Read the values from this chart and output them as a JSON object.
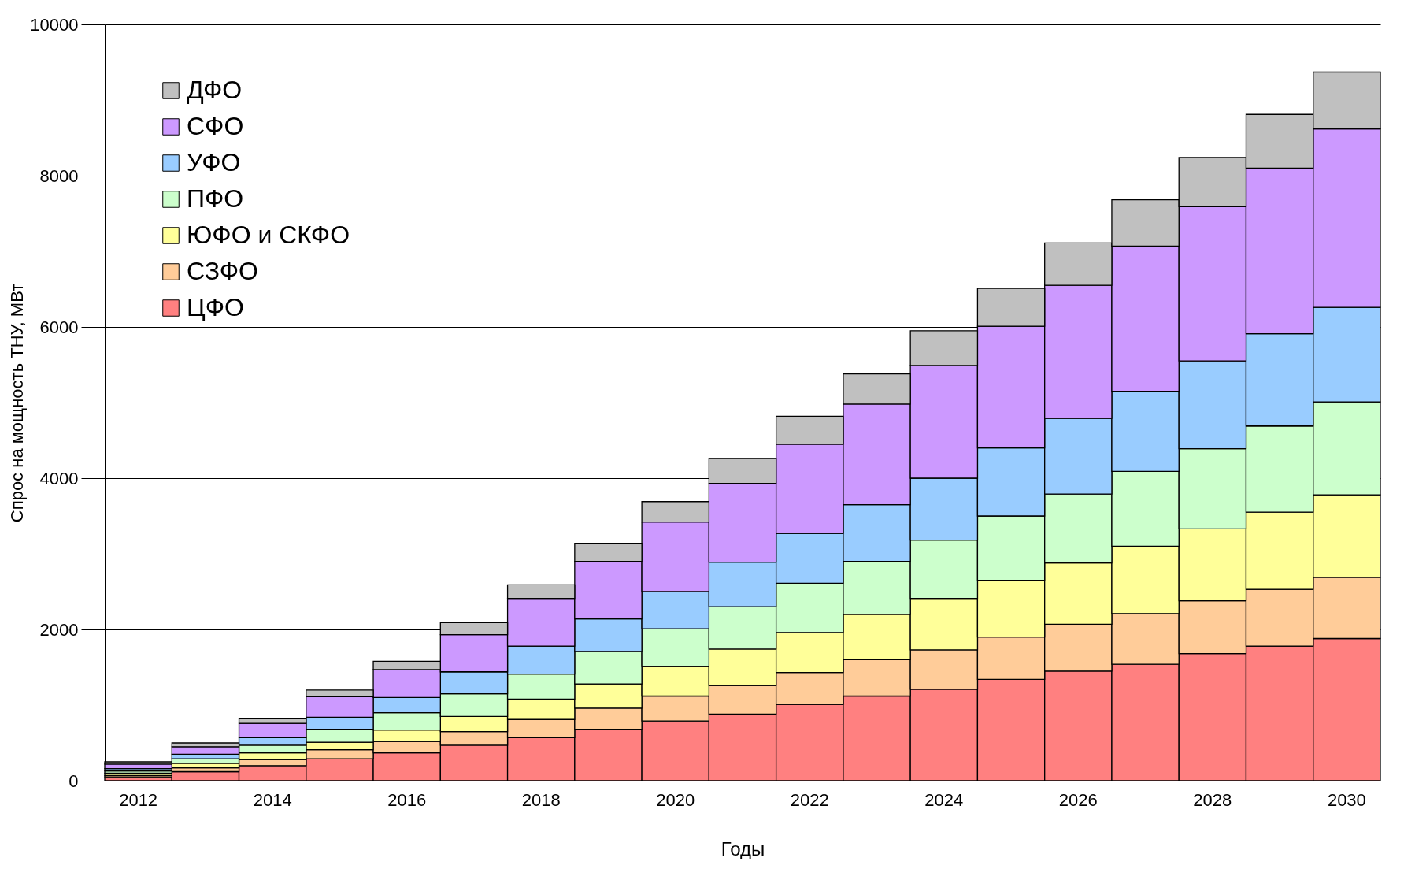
{
  "chart_data": {
    "type": "bar",
    "stacked": true,
    "xlabel": "Годы",
    "ylabel": "Спрос на мощность ТНУ, МВт",
    "categories": [
      "2012",
      null,
      "2014",
      null,
      "2016",
      null,
      "2018",
      null,
      "2020",
      null,
      "2022",
      null,
      "2024",
      null,
      "2026",
      null,
      "2028",
      null,
      "2030"
    ],
    "series": [
      {
        "name": "ЦФО",
        "color": "#ff8080",
        "values": [
          50,
          120,
          200,
          290,
          370,
          470,
          570,
          680,
          790,
          880,
          1010,
          1120,
          1210,
          1340,
          1450,
          1540,
          1680,
          1780,
          1880
        ]
      },
      {
        "name": "СЗФО",
        "color": "#ffcc99",
        "values": [
          20,
          50,
          80,
          120,
          150,
          180,
          240,
          280,
          330,
          380,
          420,
          480,
          520,
          560,
          620,
          670,
          700,
          750,
          810
        ]
      },
      {
        "name": "ЮФО и СКФО",
        "color": "#ffff99",
        "values": [
          30,
          60,
          90,
          100,
          150,
          200,
          270,
          320,
          390,
          480,
          530,
          600,
          680,
          750,
          810,
          890,
          950,
          1020,
          1090
        ]
      },
      {
        "name": "ПФО",
        "color": "#ccffcc",
        "values": [
          30,
          60,
          100,
          170,
          230,
          300,
          330,
          430,
          500,
          560,
          650,
          700,
          770,
          850,
          910,
          990,
          1060,
          1140,
          1230
        ]
      },
      {
        "name": "УФО",
        "color": "#99ccff",
        "values": [
          30,
          60,
          100,
          160,
          200,
          290,
          370,
          430,
          490,
          590,
          660,
          750,
          820,
          900,
          1000,
          1060,
          1160,
          1220,
          1250
        ]
      },
      {
        "name": "СФО",
        "color": "#cc99ff",
        "values": [
          60,
          100,
          190,
          270,
          370,
          490,
          630,
          760,
          920,
          1040,
          1180,
          1330,
          1490,
          1610,
          1760,
          1920,
          2040,
          2190,
          2360
        ]
      },
      {
        "name": "ДФО",
        "color": "#c0c0c0",
        "values": [
          30,
          50,
          60,
          90,
          110,
          160,
          180,
          240,
          270,
          330,
          370,
          400,
          460,
          500,
          560,
          610,
          650,
          710,
          750
        ]
      }
    ],
    "ylim": [
      0,
      10000
    ],
    "yticks": [
      0,
      2000,
      4000,
      6000,
      8000,
      10000
    ],
    "grid": "y",
    "legend": "top left"
  }
}
